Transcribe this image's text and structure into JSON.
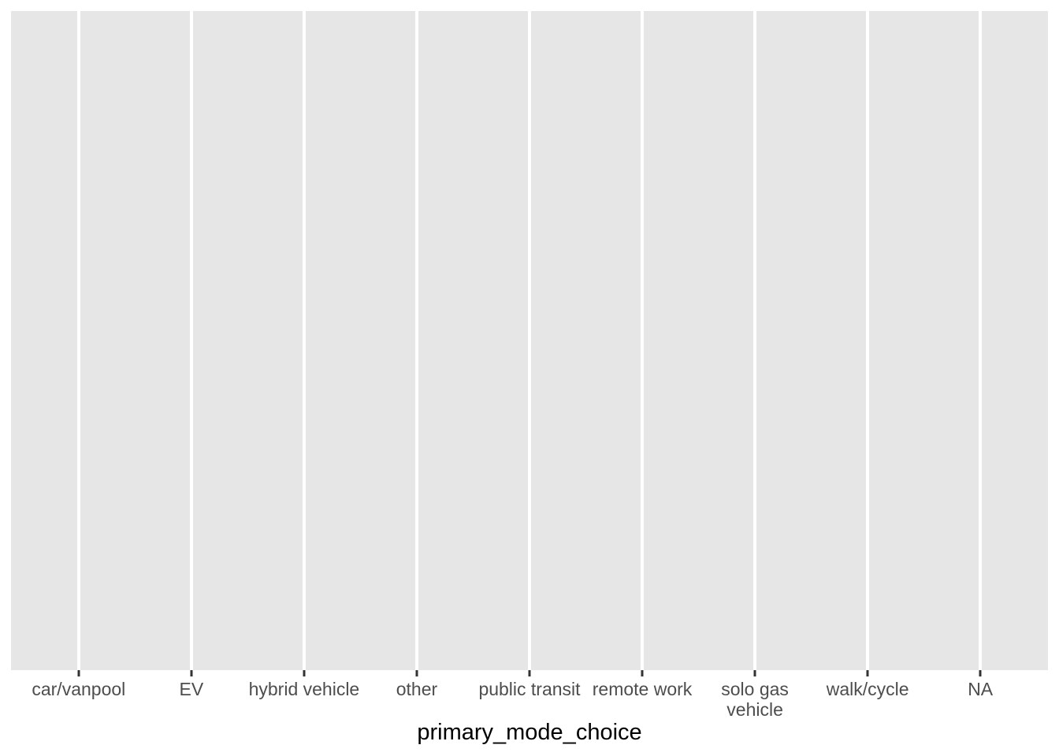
{
  "chart_data": {
    "type": "bar",
    "categories": [
      "car/vanpool",
      "EV",
      "hybrid vehicle",
      "other",
      "public transit",
      "remote work",
      "solo gas\nvehicle",
      "walk/cycle",
      "NA"
    ],
    "values": [],
    "title": "",
    "xlabel": "primary_mode_choice",
    "ylabel": "",
    "layout": {
      "panel_background": "#E6E6E6",
      "gridline_color": "#FFFFFF",
      "tick_color": "#333333",
      "label_color": "#4D4D4D",
      "title_color": "#000000",
      "grid": "vertical-major-only",
      "legend": "none",
      "y_axis": "none",
      "categorical_expansion": 0.6
    }
  }
}
